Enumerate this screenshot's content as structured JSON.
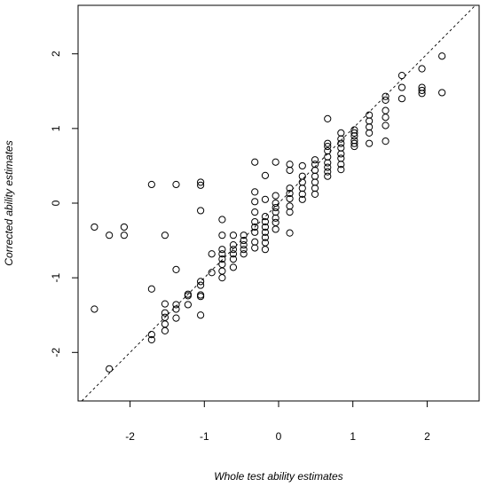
{
  "chart_data": {
    "type": "scatter",
    "title": "",
    "xlabel": "Whole test ability estimates",
    "ylabel": "Corrected ability estimates",
    "xlim": [
      -2.7,
      2.7
    ],
    "ylim": [
      -2.65,
      2.65
    ],
    "xticks": [
      -2,
      -1,
      0,
      1,
      2
    ],
    "yticks": [
      -2,
      -1,
      0,
      1,
      2
    ],
    "grid": false,
    "reference_line": {
      "type": "identity",
      "style": "dashed"
    },
    "points": [
      [
        -2.48,
        -0.32
      ],
      [
        -2.28,
        -0.43
      ],
      [
        -2.08,
        -0.32
      ],
      [
        -2.08,
        -0.43
      ],
      [
        -2.48,
        -1.42
      ],
      [
        -2.28,
        -2.22
      ],
      [
        -1.71,
        0.25
      ],
      [
        -1.71,
        -1.15
      ],
      [
        -1.71,
        -1.76
      ],
      [
        -1.71,
        -1.83
      ],
      [
        -1.53,
        -0.43
      ],
      [
        -1.53,
        -1.35
      ],
      [
        -1.53,
        -1.47
      ],
      [
        -1.53,
        -1.53
      ],
      [
        -1.53,
        -1.62
      ],
      [
        -1.53,
        -1.71
      ],
      [
        -1.38,
        0.25
      ],
      [
        -1.38,
        -0.89
      ],
      [
        -1.38,
        -1.36
      ],
      [
        -1.38,
        -1.42
      ],
      [
        -1.38,
        -1.54
      ],
      [
        -1.22,
        -1.22
      ],
      [
        -1.22,
        -1.24
      ],
      [
        -1.22,
        -1.36
      ],
      [
        -1.05,
        0.28
      ],
      [
        -1.05,
        0.24
      ],
      [
        -1.05,
        -0.1
      ],
      [
        -1.05,
        -1.05
      ],
      [
        -1.05,
        -1.1
      ],
      [
        -1.05,
        -1.23
      ],
      [
        -1.05,
        -1.25
      ],
      [
        -1.05,
        -1.5
      ],
      [
        -0.9,
        -0.68
      ],
      [
        -0.9,
        -0.93
      ],
      [
        -0.76,
        -0.22
      ],
      [
        -0.76,
        -0.43
      ],
      [
        -0.76,
        -0.62
      ],
      [
        -0.76,
        -0.68
      ],
      [
        -0.76,
        -0.75
      ],
      [
        -0.76,
        -0.82
      ],
      [
        -0.76,
        -0.91
      ],
      [
        -0.76,
        -1.0
      ],
      [
        -0.61,
        -0.43
      ],
      [
        -0.61,
        -0.56
      ],
      [
        -0.61,
        -0.62
      ],
      [
        -0.61,
        -0.68
      ],
      [
        -0.61,
        -0.75
      ],
      [
        -0.61,
        -0.86
      ],
      [
        -0.47,
        -0.43
      ],
      [
        -0.47,
        -0.5
      ],
      [
        -0.47,
        -0.56
      ],
      [
        -0.47,
        -0.62
      ],
      [
        -0.47,
        -0.68
      ],
      [
        -0.32,
        0.55
      ],
      [
        -0.32,
        0.15
      ],
      [
        -0.32,
        0.02
      ],
      [
        -0.32,
        -0.12
      ],
      [
        -0.32,
        -0.25
      ],
      [
        -0.32,
        -0.32
      ],
      [
        -0.32,
        -0.39
      ],
      [
        -0.32,
        -0.52
      ],
      [
        -0.32,
        -0.6
      ],
      [
        -0.18,
        0.37
      ],
      [
        -0.18,
        0.05
      ],
      [
        -0.18,
        -0.18
      ],
      [
        -0.18,
        -0.25
      ],
      [
        -0.18,
        -0.32
      ],
      [
        -0.18,
        -0.39
      ],
      [
        -0.18,
        -0.46
      ],
      [
        -0.18,
        -0.53
      ],
      [
        -0.18,
        -0.62
      ],
      [
        -0.04,
        0.55
      ],
      [
        -0.04,
        0.1
      ],
      [
        -0.04,
        0.0
      ],
      [
        -0.04,
        -0.06
      ],
      [
        -0.04,
        -0.12
      ],
      [
        -0.04,
        -0.2
      ],
      [
        -0.04,
        -0.26
      ],
      [
        -0.04,
        -0.35
      ],
      [
        0.15,
        0.52
      ],
      [
        0.15,
        0.44
      ],
      [
        0.15,
        0.2
      ],
      [
        0.15,
        0.13
      ],
      [
        0.15,
        0.06
      ],
      [
        0.15,
        -0.04
      ],
      [
        0.15,
        -0.12
      ],
      [
        0.15,
        -0.4
      ],
      [
        0.32,
        0.5
      ],
      [
        0.32,
        0.36
      ],
      [
        0.32,
        0.28
      ],
      [
        0.32,
        0.2
      ],
      [
        0.32,
        0.12
      ],
      [
        0.32,
        0.05
      ],
      [
        0.49,
        0.58
      ],
      [
        0.49,
        0.52
      ],
      [
        0.49,
        0.44
      ],
      [
        0.49,
        0.36
      ],
      [
        0.49,
        0.28
      ],
      [
        0.49,
        0.2
      ],
      [
        0.49,
        0.12
      ],
      [
        0.66,
        1.13
      ],
      [
        0.66,
        0.8
      ],
      [
        0.66,
        0.76
      ],
      [
        0.66,
        0.7
      ],
      [
        0.66,
        0.62
      ],
      [
        0.66,
        0.54
      ],
      [
        0.66,
        0.48
      ],
      [
        0.66,
        0.42
      ],
      [
        0.66,
        0.36
      ],
      [
        0.84,
        0.94
      ],
      [
        0.84,
        0.86
      ],
      [
        0.84,
        0.8
      ],
      [
        0.84,
        0.74
      ],
      [
        0.84,
        0.66
      ],
      [
        0.84,
        0.6
      ],
      [
        0.84,
        0.52
      ],
      [
        0.84,
        0.45
      ],
      [
        1.02,
        0.98
      ],
      [
        1.02,
        0.94
      ],
      [
        1.02,
        0.9
      ],
      [
        1.02,
        0.84
      ],
      [
        1.02,
        0.8
      ],
      [
        1.02,
        0.76
      ],
      [
        1.22,
        1.18
      ],
      [
        1.22,
        1.1
      ],
      [
        1.22,
        1.02
      ],
      [
        1.22,
        0.94
      ],
      [
        1.22,
        0.8
      ],
      [
        1.44,
        1.43
      ],
      [
        1.44,
        1.38
      ],
      [
        1.44,
        1.24
      ],
      [
        1.44,
        1.15
      ],
      [
        1.44,
        1.04
      ],
      [
        1.44,
        0.83
      ],
      [
        1.66,
        1.71
      ],
      [
        1.66,
        1.55
      ],
      [
        1.66,
        1.4
      ],
      [
        1.93,
        1.8
      ],
      [
        1.93,
        1.55
      ],
      [
        1.93,
        1.51
      ],
      [
        1.93,
        1.47
      ],
      [
        2.2,
        1.97
      ],
      [
        2.2,
        1.48
      ]
    ]
  }
}
